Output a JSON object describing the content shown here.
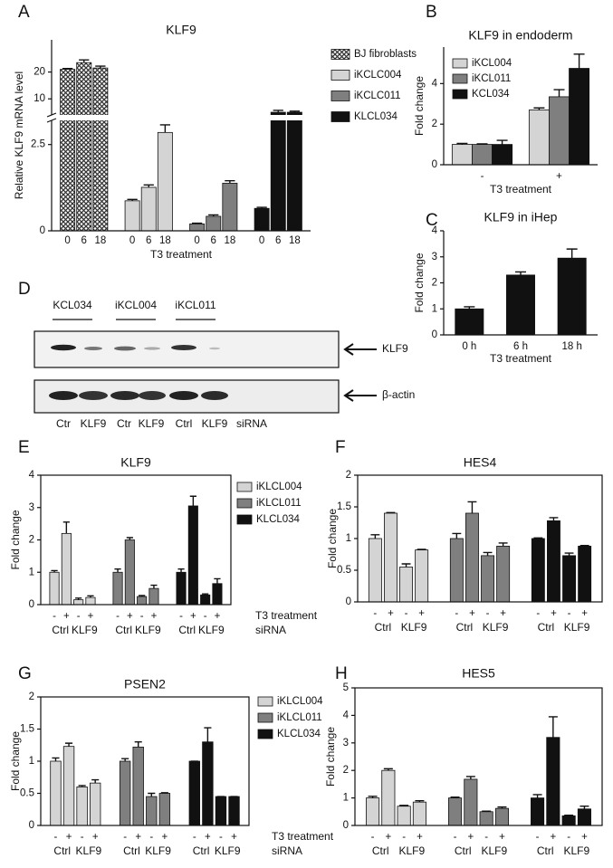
{
  "chart_data": [
    {
      "type": "bar",
      "panel": "A",
      "title": "KLF9",
      "y_label": "Relative KLF9 mRNA level",
      "x_label": "T3 treatment",
      "categories": [
        "0",
        "6",
        "18"
      ],
      "axis_break": true,
      "ylim": [
        0,
        3.2
      ],
      "yticks": [
        0,
        2.5
      ],
      "ylim_upper": [
        4,
        32
      ],
      "yticks_upper": [
        10,
        20
      ],
      "series": [
        {
          "name": "BJ fibroblasts",
          "color": "#333333",
          "pattern": "crosshatch",
          "values": [
            21,
            23.5,
            21.5
          ],
          "errors": [
            0.3,
            1,
            0.7
          ]
        },
        {
          "name": "iKCLC004",
          "color": "#d4d4d4",
          "values": [
            0.87,
            1.26,
            2.85
          ],
          "errors": [
            0.04,
            0.07,
            0.22
          ]
        },
        {
          "name": "iKCLC011",
          "color": "#7f7f7f",
          "values": [
            0.2,
            0.42,
            1.38
          ],
          "errors": [
            0.02,
            0.04,
            0.07
          ]
        },
        {
          "name": "KLCL034",
          "color": "#111111",
          "values": [
            0.65,
            5,
            5
          ],
          "errors": [
            0.03,
            0.7,
            0.4
          ]
        }
      ]
    },
    {
      "type": "bar",
      "panel": "B",
      "title": "KLF9 in endoderm",
      "y_label": "Fold change",
      "x_label": "T3 treatment",
      "categories": [
        "-",
        "+"
      ],
      "ylim": [
        0,
        5.8
      ],
      "yticks": [
        0,
        2,
        4
      ],
      "series": [
        {
          "name": "iKCL004",
          "color": "#d4d4d4",
          "values": [
            1,
            2.7
          ],
          "errors": [
            0.05,
            0.1
          ]
        },
        {
          "name": "iKCL011",
          "color": "#7f7f7f",
          "values": [
            1,
            3.35
          ],
          "errors": [
            0.03,
            0.35
          ]
        },
        {
          "name": "KCL034",
          "color": "#111111",
          "values": [
            1,
            4.75
          ],
          "errors": [
            0.2,
            0.7
          ]
        }
      ]
    },
    {
      "type": "bar",
      "panel": "C",
      "title": "KLF9 in iHep",
      "y_label": "Fold change",
      "x_label": "T3 treatment",
      "categories": [
        "0 h",
        "6 h",
        "18 h"
      ],
      "ylim": [
        0,
        4
      ],
      "yticks": [
        0,
        1,
        2,
        3,
        4
      ],
      "color": "#111111",
      "values": [
        1,
        2.3,
        2.95
      ],
      "errors": [
        0.08,
        0.12,
        0.35
      ]
    },
    {
      "type": "blot",
      "panel": "D",
      "groups": [
        "KCL034",
        "iKCL004",
        "iKCL011"
      ],
      "bands": [
        "KLF9",
        "β-actin"
      ],
      "lanes": [
        "Ctr",
        "KLF9",
        "Ctr",
        "KLF9",
        "Ctrl",
        "KLF9"
      ],
      "lane_title": "siRNA"
    },
    {
      "type": "bar",
      "panel": "E",
      "title": "KLF9",
      "y_label": "Fold change",
      "categories": [
        "-",
        "+",
        "-",
        "+"
      ],
      "sub_categories": [
        "Ctrl",
        "KLF9"
      ],
      "row_labels": [
        "T3 treatment",
        "siRNA"
      ],
      "ylim": [
        0,
        4
      ],
      "yticks": [
        0,
        1,
        2,
        3,
        4
      ],
      "series": [
        {
          "name": "iKLCL004",
          "color": "#d4d4d4",
          "values": [
            1,
            2.2,
            0.15,
            0.22
          ],
          "errors": [
            0.05,
            0.35,
            0.05,
            0.05
          ]
        },
        {
          "name": "iKLCL011",
          "color": "#7f7f7f",
          "values": [
            1,
            2,
            0.25,
            0.5
          ],
          "errors": [
            0.1,
            0.07,
            0.03,
            0.1
          ]
        },
        {
          "name": "KLCL034",
          "color": "#111111",
          "values": [
            1,
            3.05,
            0.3,
            0.65
          ],
          "errors": [
            0.1,
            0.3,
            0.03,
            0.15
          ]
        }
      ]
    },
    {
      "type": "bar",
      "panel": "F",
      "title": "HES4",
      "y_label": "Fold change",
      "categories": [
        "-",
        "+",
        "-",
        "+"
      ],
      "sub_categories": [
        "Ctrl",
        "KLF9"
      ],
      "ylim": [
        0,
        2
      ],
      "yticks": [
        0,
        0.5,
        1,
        1.5,
        2
      ],
      "series": [
        {
          "color": "#d4d4d4",
          "values": [
            1,
            1.4,
            0.55,
            0.82
          ],
          "errors": [
            0.06,
            0.01,
            0.05,
            0.01
          ]
        },
        {
          "color": "#7f7f7f",
          "values": [
            1,
            1.4,
            0.73,
            0.88
          ],
          "errors": [
            0.08,
            0.18,
            0.05,
            0.05
          ]
        },
        {
          "color": "#111111",
          "values": [
            1,
            1.28,
            0.73,
            0.88
          ],
          "errors": [
            0.01,
            0.05,
            0.04,
            0.01
          ]
        }
      ]
    },
    {
      "type": "bar",
      "panel": "G",
      "title": "PSEN2",
      "y_label": "Fold change",
      "categories": [
        "-",
        "+",
        "-",
        "+"
      ],
      "sub_categories": [
        "Ctrl",
        "KLF9"
      ],
      "row_labels": [
        "T3 treatment",
        "siRNA"
      ],
      "ylim": [
        0,
        2
      ],
      "yticks": [
        0,
        0.5,
        1,
        1.5,
        2
      ],
      "series": [
        {
          "name": "iKLCL004",
          "color": "#d4d4d4",
          "values": [
            1,
            1.23,
            0.6,
            0.66
          ],
          "errors": [
            0.05,
            0.05,
            0.02,
            0.05
          ]
        },
        {
          "name": "iKLCL011",
          "color": "#7f7f7f",
          "values": [
            1,
            1.22,
            0.45,
            0.5
          ],
          "errors": [
            0.04,
            0.08,
            0.05,
            0.01
          ]
        },
        {
          "name": "KLCL034",
          "color": "#111111",
          "values": [
            1,
            1.3,
            0.45,
            0.45
          ],
          "errors": [
            0,
            0.22,
            0,
            0
          ]
        }
      ]
    },
    {
      "type": "bar",
      "panel": "H",
      "title": "HES5",
      "y_label": "Fold change",
      "categories": [
        "-",
        "+",
        "-",
        "+"
      ],
      "sub_categories": [
        "Ctrl",
        "KLF9"
      ],
      "ylim": [
        0,
        5
      ],
      "yticks": [
        0,
        1,
        2,
        3,
        4,
        5
      ],
      "series": [
        {
          "color": "#d4d4d4",
          "values": [
            1,
            2,
            0.7,
            0.85
          ],
          "errors": [
            0.06,
            0.06,
            0.03,
            0.05
          ]
        },
        {
          "color": "#7f7f7f",
          "values": [
            1,
            1.68,
            0.5,
            0.62
          ],
          "errors": [
            0.03,
            0.1,
            0.02,
            0.05
          ]
        },
        {
          "color": "#111111",
          "values": [
            1,
            3.2,
            0.35,
            0.6
          ],
          "errors": [
            0.12,
            0.75,
            0.02,
            0.1
          ]
        }
      ]
    }
  ]
}
